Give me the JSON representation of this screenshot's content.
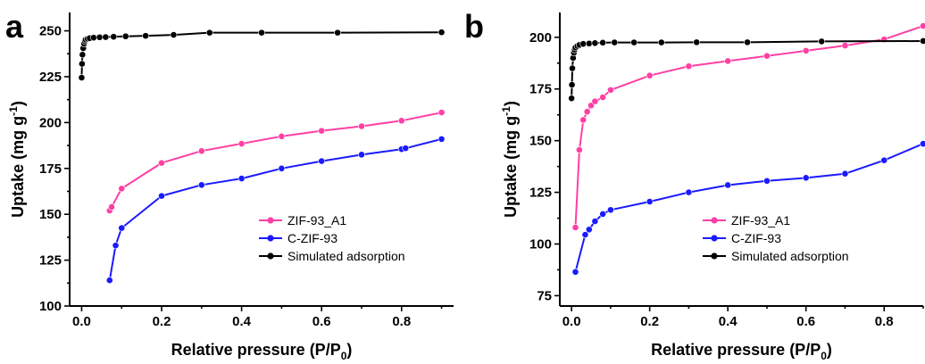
{
  "chart_data": [
    {
      "panel_label": "a",
      "type": "line",
      "xlabel": "Relative pressure (P/P",
      "xlabel_sub": "0",
      "xlabel_end": ")",
      "ylabel": "Uptake (mg g",
      "ylabel_sup": "-1",
      "ylabel_end": ")",
      "xlim": [
        -0.03,
        0.93
      ],
      "ylim": [
        100,
        260
      ],
      "xticks": [
        0.0,
        0.2,
        0.4,
        0.6,
        0.8
      ],
      "xtick_labels": [
        "0.0",
        "0.2",
        "0.4",
        "0.6",
        "0.8"
      ],
      "yticks": [
        100,
        125,
        150,
        175,
        200,
        225,
        250
      ],
      "ytick_labels": [
        "100",
        "125",
        "150",
        "175",
        "200",
        "225",
        "250"
      ],
      "legend_position": "center-right",
      "series": [
        {
          "name": "ZIF-93_A1",
          "color": "#ff3fa4",
          "x": [
            0.07,
            0.075,
            0.1,
            0.2,
            0.3,
            0.4,
            0.5,
            0.6,
            0.7,
            0.8,
            0.9
          ],
          "y": [
            152,
            154,
            164,
            178,
            184.5,
            188.5,
            192.5,
            195.5,
            198,
            201,
            205.5
          ]
        },
        {
          "name": "C-ZIF-93",
          "color": "#1a1aff",
          "x": [
            0.07,
            0.085,
            0.1,
            0.2,
            0.3,
            0.4,
            0.5,
            0.6,
            0.7,
            0.8,
            0.81,
            0.9
          ],
          "y": [
            114,
            133,
            142.5,
            160,
            166,
            169.5,
            175,
            179,
            182.5,
            185.5,
            186,
            191
          ]
        },
        {
          "name": "Simulated adsorption",
          "color": "#000000",
          "x": [
            0.0,
            0.001,
            0.002,
            0.004,
            0.006,
            0.008,
            0.01,
            0.015,
            0.02,
            0.03,
            0.045,
            0.06,
            0.08,
            0.11,
            0.16,
            0.23,
            0.32,
            0.45,
            0.64,
            0.9
          ],
          "y": [
            224.5,
            232,
            237,
            240.5,
            243,
            244.3,
            245.2,
            245.7,
            246,
            246.3,
            246.5,
            246.6,
            246.8,
            247,
            247.3,
            247.8,
            249,
            249,
            249,
            249.2
          ]
        }
      ]
    },
    {
      "panel_label": "b",
      "type": "line",
      "xlabel": "Relative pressure (P/P",
      "xlabel_sub": "0",
      "xlabel_end": ")",
      "ylabel": "Uptake (mg g",
      "ylabel_sup": "-1",
      "ylabel_end": ")",
      "xlim": [
        -0.03,
        0.9
      ],
      "ylim": [
        70,
        212
      ],
      "xticks": [
        0.0,
        0.2,
        0.4,
        0.6,
        0.8
      ],
      "xtick_labels": [
        "0.0",
        "0.2",
        "0.4",
        "0.6",
        "0.8"
      ],
      "yticks": [
        75,
        100,
        125,
        150,
        175,
        200
      ],
      "ytick_labels": [
        "75",
        "100",
        "125",
        "150",
        "175",
        "200"
      ],
      "legend_position": "center-right",
      "series": [
        {
          "name": "ZIF-93_A1",
          "color": "#ff3fa4",
          "x": [
            0.01,
            0.02,
            0.03,
            0.04,
            0.05,
            0.06,
            0.08,
            0.1,
            0.2,
            0.3,
            0.4,
            0.5,
            0.6,
            0.7,
            0.8,
            0.9
          ],
          "y": [
            108,
            145.5,
            160,
            164,
            167,
            169,
            171,
            174.5,
            181.5,
            186,
            188.5,
            191,
            193.5,
            196,
            199,
            205.5
          ]
        },
        {
          "name": "C-ZIF-93",
          "color": "#1a1aff",
          "x": [
            0.01,
            0.035,
            0.045,
            0.06,
            0.08,
            0.1,
            0.2,
            0.3,
            0.4,
            0.5,
            0.6,
            0.7,
            0.8,
            0.9
          ],
          "y": [
            86.5,
            104.5,
            107,
            111,
            114.5,
            116.5,
            120.5,
            125,
            128.5,
            130.5,
            132,
            134,
            140.5,
            148.5
          ]
        },
        {
          "name": "Simulated adsorption",
          "color": "#000000",
          "x": [
            0.0,
            0.001,
            0.002,
            0.004,
            0.006,
            0.008,
            0.01,
            0.015,
            0.02,
            0.03,
            0.045,
            0.06,
            0.08,
            0.11,
            0.16,
            0.23,
            0.32,
            0.45,
            0.64,
            0.9
          ],
          "y": [
            170.5,
            177,
            185,
            190,
            192.5,
            194,
            195,
            195.8,
            196.3,
            196.8,
            197,
            197.2,
            197.4,
            197.5,
            197.5,
            197.5,
            197.6,
            197.6,
            198,
            198.2
          ]
        }
      ]
    }
  ]
}
